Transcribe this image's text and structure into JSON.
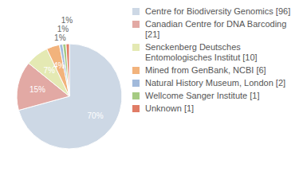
{
  "chart_data": {
    "type": "pie",
    "categories": [
      "Centre for Biodiversity Genomics [96]",
      "Canadian Centre for DNA Barcoding [21]",
      "Senckenberg Deutsches Entomologisches Institut [10]",
      "Mined from GenBank, NCBI [6]",
      "Natural History Museum, London [2]",
      "Wellcome Sanger Institute [1]",
      "Unknown [1]"
    ],
    "values": [
      70,
      15,
      7,
      4,
      1,
      1,
      1
    ],
    "value_labels": [
      "70%",
      "15%",
      "7%",
      "4%",
      "1%",
      "1%",
      "1%"
    ],
    "colors": [
      "#cdd8e5",
      "#e2a9a4",
      "#e4e9b3",
      "#f2b37c",
      "#a2badb",
      "#a6cb83",
      "#e07c66"
    ],
    "data_labels": true,
    "legend": "right"
  }
}
